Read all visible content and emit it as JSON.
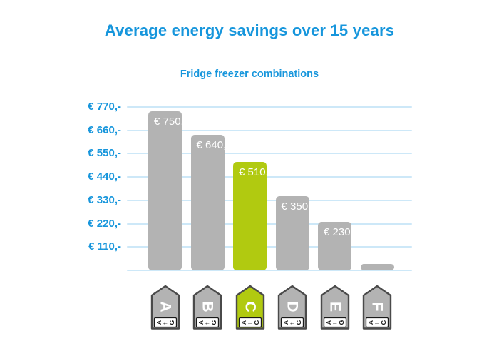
{
  "page": {
    "title": "Average energy savings over 15 years",
    "subtitle": "Fridge freezer combinations"
  },
  "colors": {
    "accent_blue": "#1796dc",
    "gridline_blue": "#cde8f8",
    "bar_gray": "#b3b3b3",
    "bar_highlight_green": "#b1ca10",
    "tag_border": "#4a4a4a",
    "bar_label_text": "#ffffff"
  },
  "chart_data": {
    "type": "bar",
    "title": "Average energy savings over 15 years",
    "subtitle": "Fridge freezer combinations",
    "categories": [
      "A",
      "B",
      "C",
      "D",
      "E",
      "F"
    ],
    "values": [
      750,
      640,
      510,
      350,
      230,
      30
    ],
    "bar_labels": [
      "€ 750,-",
      "€ 640,-",
      "€ 510,-",
      "€ 350,-",
      "€ 230,-",
      ""
    ],
    "highlighted_category": "C",
    "bar_color": "#b3b3b3",
    "highlight_color": "#b1ca10",
    "y_tick_values": [
      770,
      660,
      550,
      440,
      330,
      220,
      110
    ],
    "y_tick_labels": [
      "€ 770,-",
      "€ 660,-",
      "€ 550,-",
      "€ 440,-",
      "€ 330,-",
      "€ 220,-",
      "€ 110,-"
    ],
    "ylim": [
      0,
      770
    ],
    "grid": true,
    "legend": false,
    "x_axis_style": "EU energy class arrow tags pointing up, class letter rotated",
    "energy_tag_scale": {
      "first": "A",
      "arrow": "←",
      "last": "G"
    }
  }
}
